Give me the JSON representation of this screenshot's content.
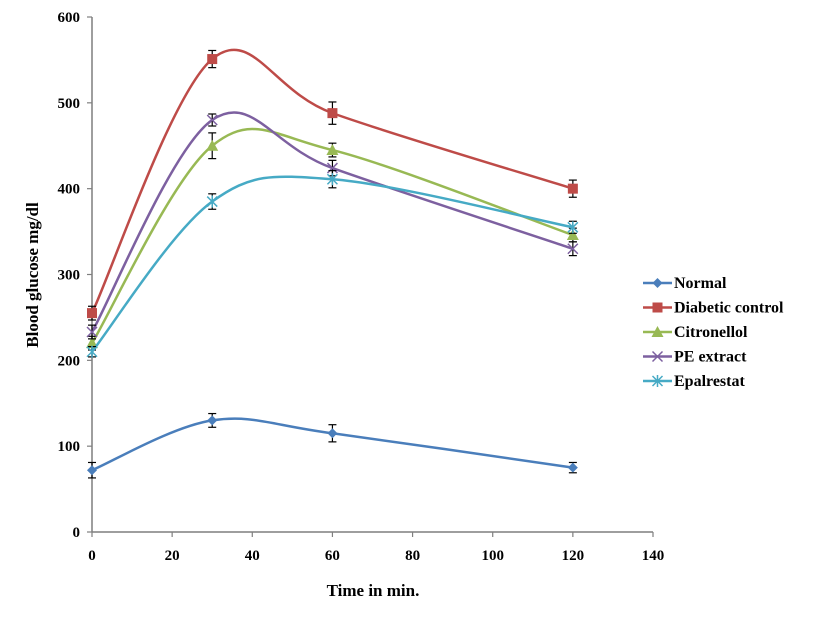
{
  "chart_data": {
    "type": "line",
    "title": "",
    "xlabel": "Time in min.",
    "ylabel": "Blood glucose  mg/dl",
    "xlim": [
      0,
      140
    ],
    "ylim": [
      0,
      600
    ],
    "xticks": [
      0,
      20,
      40,
      60,
      80,
      100,
      120,
      140
    ],
    "yticks": [
      0,
      100,
      200,
      300,
      400,
      500,
      600
    ],
    "grid": false,
    "legend_position": "right",
    "smooth": true,
    "x": [
      0,
      30,
      60,
      120
    ],
    "series": [
      {
        "name": "Normal",
        "color": "#4a7ebb",
        "marker": "diamond",
        "values": [
          72,
          130,
          115,
          75
        ],
        "errors": [
          9,
          8,
          10,
          6
        ]
      },
      {
        "name": "Diabetic control",
        "color": "#be4b48",
        "marker": "square",
        "values": [
          255,
          551,
          488,
          400
        ],
        "errors": [
          8,
          10,
          13,
          10
        ]
      },
      {
        "name": "Citronellol",
        "color": "#98b954",
        "marker": "triangle",
        "values": [
          220,
          450,
          445,
          346
        ],
        "errors": [
          8,
          15,
          8,
          8
        ]
      },
      {
        "name": "PE extract",
        "color": "#7d60a0",
        "marker": "x",
        "values": [
          233,
          480,
          424,
          330
        ],
        "errors": [
          8,
          7,
          9,
          8
        ]
      },
      {
        "name": "Epalrestat",
        "color": "#46aac5",
        "marker": "star",
        "values": [
          210,
          385,
          411,
          355
        ],
        "errors": [
          6,
          9,
          10,
          7
        ]
      }
    ]
  }
}
